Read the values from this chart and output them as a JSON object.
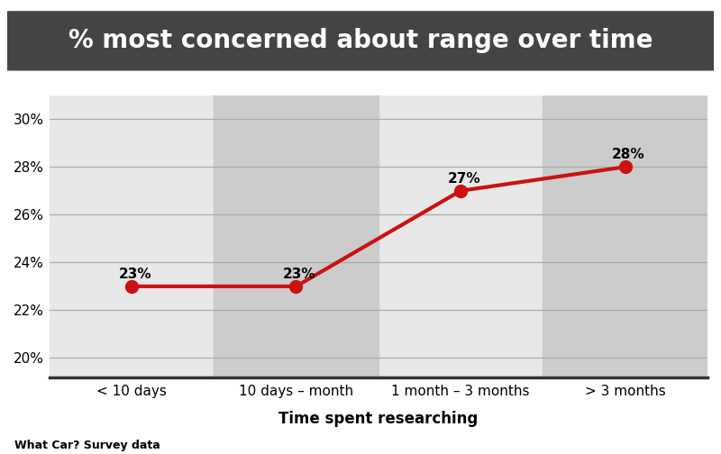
{
  "title": "% most concerned about range over time",
  "title_bg_color": "#444444",
  "title_text_color": "#ffffff",
  "categories": [
    "< 10 days",
    "10 days – month",
    "1 month – 3 months",
    "> 3 months"
  ],
  "values": [
    23,
    23,
    27,
    28
  ],
  "labels": [
    "23%",
    "23%",
    "27%",
    "28%"
  ],
  "line_color": "#cc1111",
  "marker_color": "#cc1111",
  "xlabel": "Time spent researching",
  "xlabel_fontsize": 12,
  "ylabel_ticks": [
    20,
    22,
    24,
    26,
    28,
    30
  ],
  "ylim": [
    19.2,
    31.0
  ],
  "footnote": "What Car? Survey data",
  "fig_bg_color": "#ffffff",
  "plot_bg_color": "#e8e8e8",
  "alt_band_color": "#cccccc",
  "grid_color": "#aaaaaa",
  "tick_fontsize": 11,
  "label_fontsize": 11,
  "band_ranges": [
    [
      0.5,
      1.5
    ],
    [
      2.5,
      3.5
    ]
  ]
}
